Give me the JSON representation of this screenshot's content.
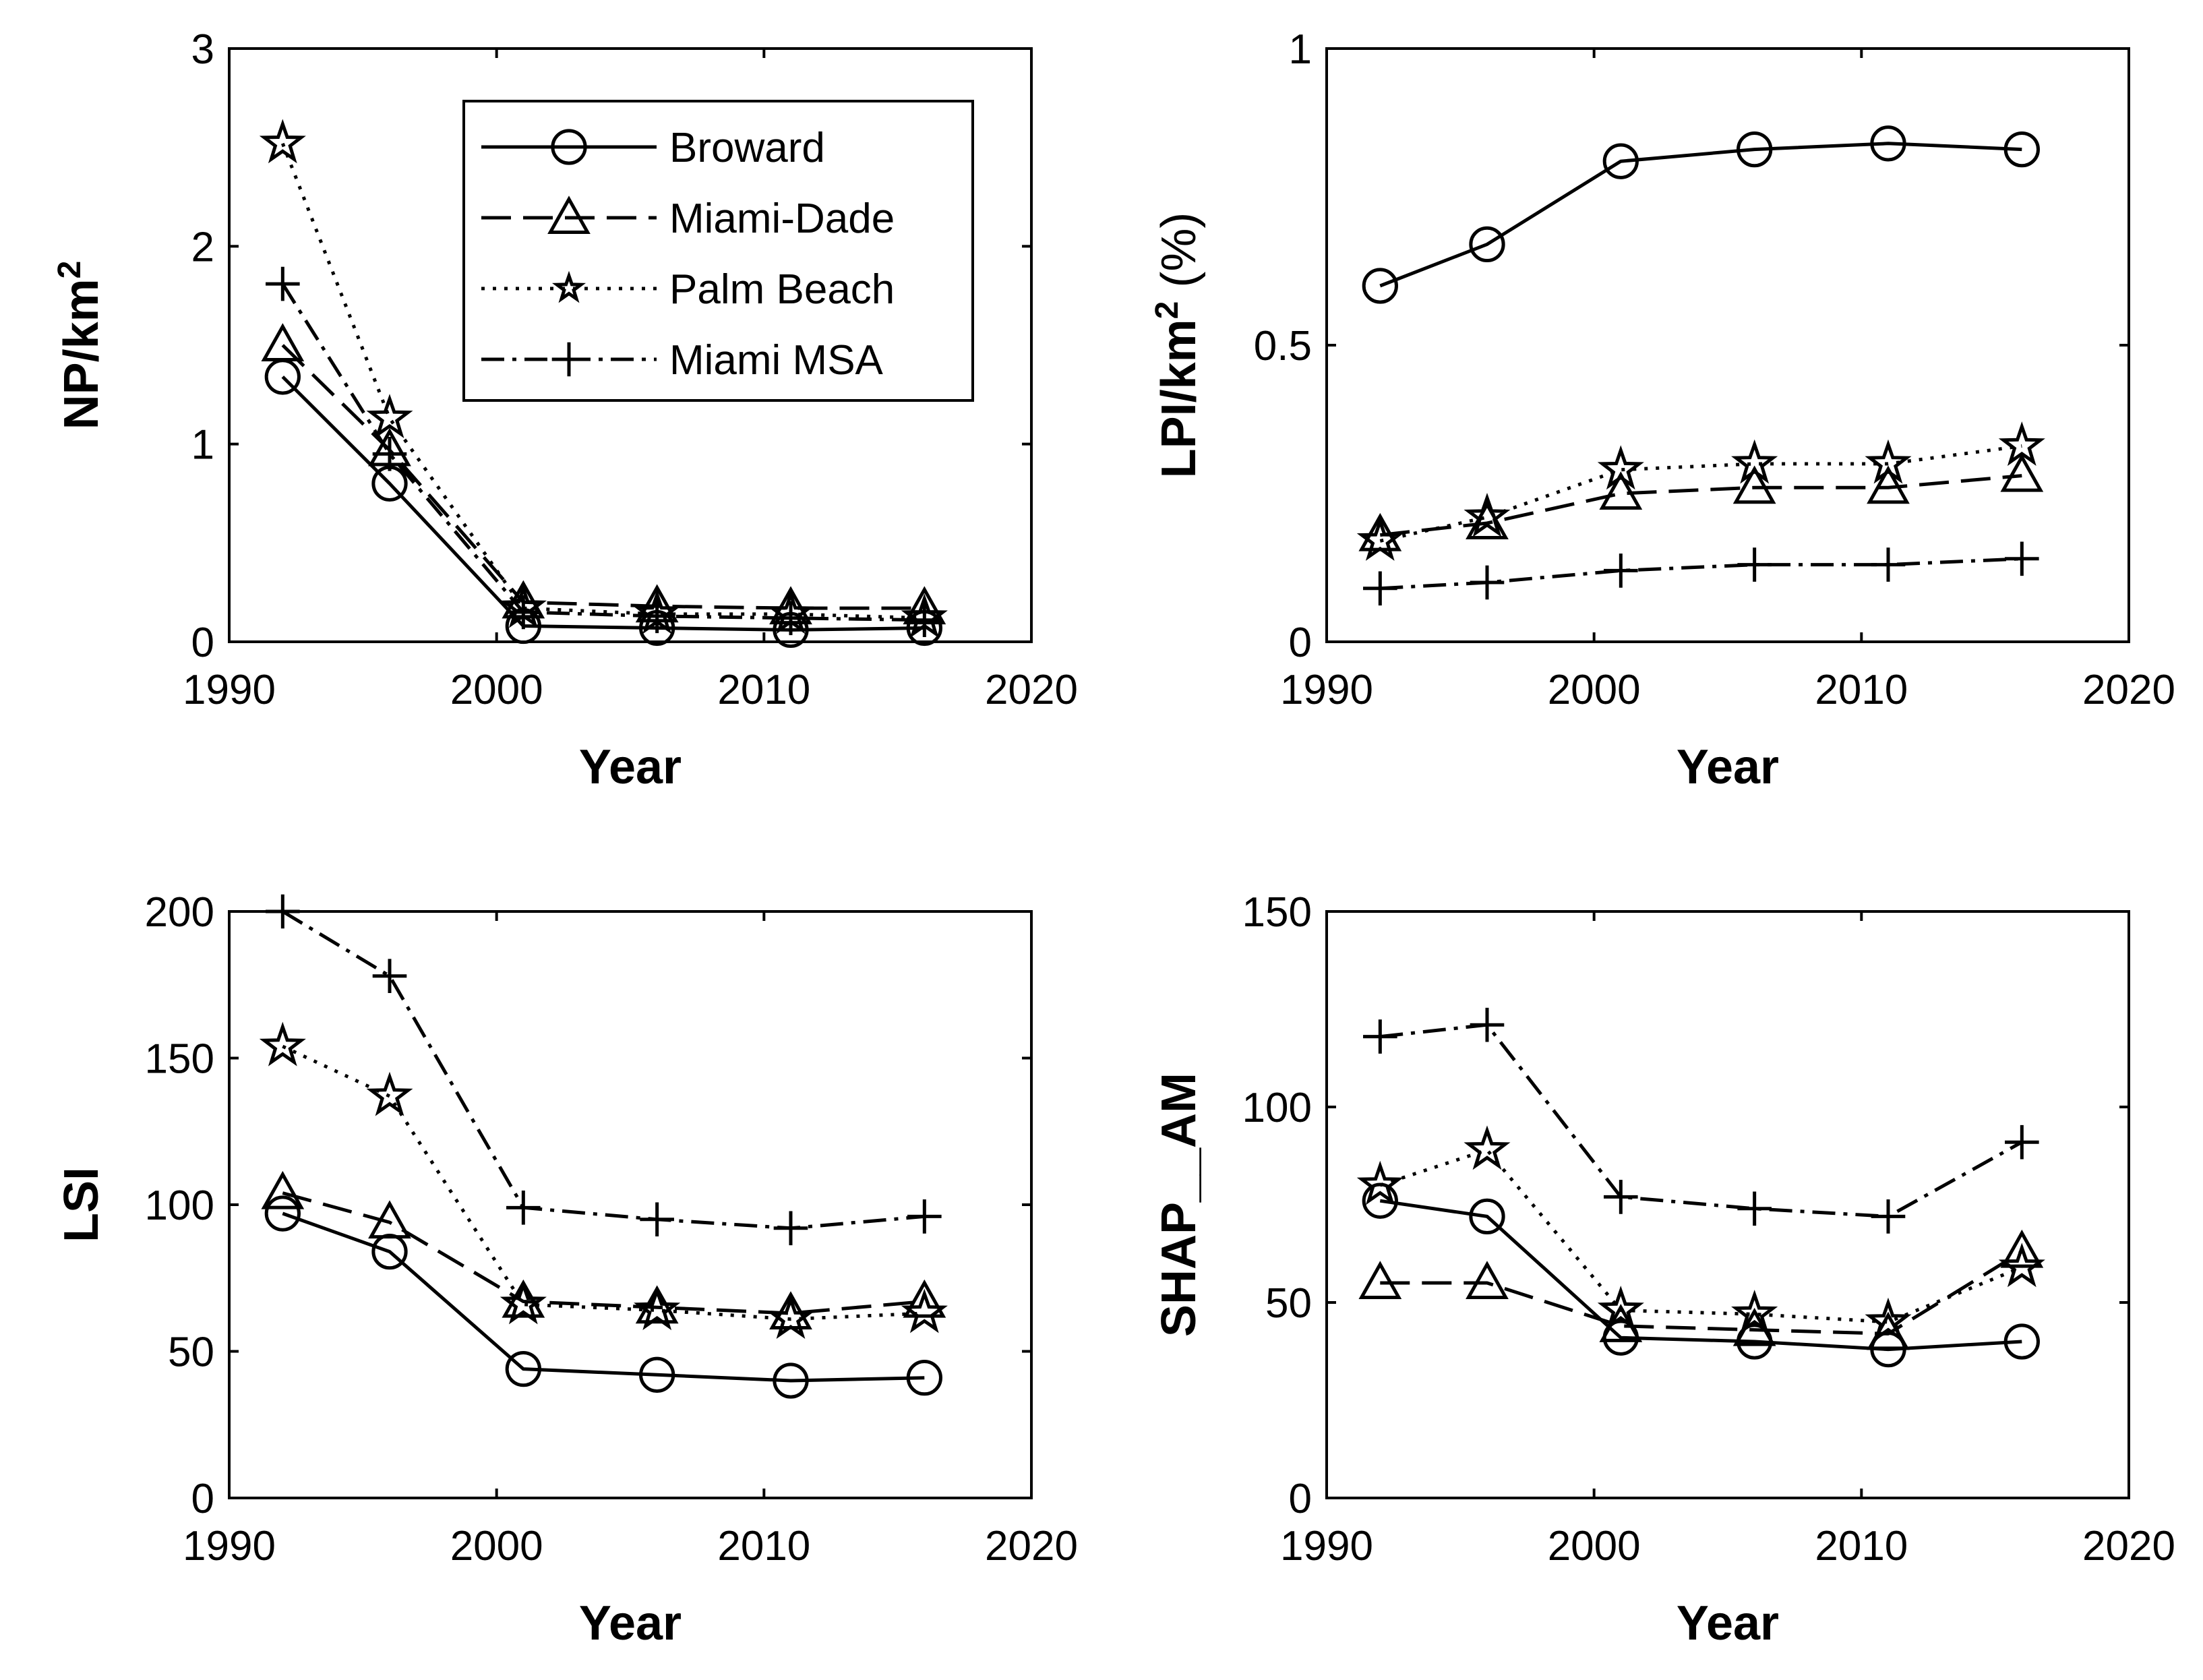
{
  "chart_data": [
    {
      "type": "line",
      "panel": "top-left",
      "xlabel": "Year",
      "ylabel": "NP/km",
      "ylabel_superscript": "2",
      "ylabel_suffix": "",
      "xlim": [
        1990,
        2020
      ],
      "ylim": [
        0,
        3
      ],
      "xticks": [
        1990,
        2000,
        2010,
        2020
      ],
      "yticks": [
        0,
        1,
        2,
        3
      ],
      "x": [
        1992,
        1996,
        2001,
        2006,
        2011,
        2016
      ],
      "legend": "top-right",
      "grid": false,
      "series": [
        {
          "name": "Broward",
          "marker": "circle",
          "dash": "solid",
          "values": [
            1.34,
            0.8,
            0.08,
            0.07,
            0.06,
            0.07
          ]
        },
        {
          "name": "Miami-Dade",
          "marker": "triangle",
          "dash": "dashed",
          "values": [
            1.5,
            0.97,
            0.2,
            0.18,
            0.17,
            0.17
          ]
        },
        {
          "name": "Palm Beach",
          "marker": "star",
          "dash": "dotted",
          "values": [
            2.52,
            1.13,
            0.17,
            0.14,
            0.14,
            0.12
          ]
        },
        {
          "name": "Miami MSA",
          "marker": "plus",
          "dash": "dashdot",
          "values": [
            1.81,
            0.95,
            0.15,
            0.13,
            0.12,
            0.11
          ]
        }
      ]
    },
    {
      "type": "line",
      "panel": "top-right",
      "xlabel": "Year",
      "ylabel": "LPI/km",
      "ylabel_superscript": "2",
      "ylabel_suffix": " (%)",
      "xlim": [
        1990,
        2020
      ],
      "ylim": [
        0,
        1
      ],
      "xticks": [
        1990,
        2000,
        2010,
        2020
      ],
      "yticks": [
        0,
        0.5,
        1
      ],
      "x": [
        1992,
        1996,
        2001,
        2006,
        2011,
        2016
      ],
      "grid": false,
      "series": [
        {
          "name": "Broward",
          "marker": "circle",
          "dash": "solid",
          "values": [
            0.6,
            0.67,
            0.81,
            0.83,
            0.84,
            0.83
          ]
        },
        {
          "name": "Miami-Dade",
          "marker": "triangle",
          "dash": "dashed",
          "values": [
            0.18,
            0.2,
            0.25,
            0.26,
            0.26,
            0.28
          ]
        },
        {
          "name": "Palm Beach",
          "marker": "star",
          "dash": "dotted",
          "values": [
            0.17,
            0.21,
            0.29,
            0.3,
            0.3,
            0.33
          ]
        },
        {
          "name": "Miami MSA",
          "marker": "plus",
          "dash": "dashdot",
          "values": [
            0.09,
            0.1,
            0.12,
            0.13,
            0.13,
            0.14
          ]
        }
      ]
    },
    {
      "type": "line",
      "panel": "bottom-left",
      "xlabel": "Year",
      "ylabel": "LSI",
      "ylabel_superscript": "",
      "ylabel_suffix": "",
      "xlim": [
        1990,
        2020
      ],
      "ylim": [
        0,
        200
      ],
      "xticks": [
        1990,
        2000,
        2010,
        2020
      ],
      "yticks": [
        0,
        50,
        100,
        150,
        200
      ],
      "x": [
        1992,
        1996,
        2001,
        2006,
        2011,
        2016
      ],
      "grid": false,
      "series": [
        {
          "name": "Broward",
          "marker": "circle",
          "dash": "solid",
          "values": [
            97,
            84,
            44,
            42,
            40,
            41
          ]
        },
        {
          "name": "Miami-Dade",
          "marker": "triangle",
          "dash": "dashed",
          "values": [
            104,
            94,
            67,
            65,
            63,
            67
          ]
        },
        {
          "name": "Palm Beach",
          "marker": "star",
          "dash": "dotted",
          "values": [
            154,
            137,
            66,
            64,
            61,
            63
          ]
        },
        {
          "name": "Miami MSA",
          "marker": "plus",
          "dash": "dashdot",
          "values": [
            200,
            178,
            99,
            95,
            92,
            96
          ]
        }
      ]
    },
    {
      "type": "line",
      "panel": "bottom-right",
      "xlabel": "Year",
      "ylabel": "SHAP__AM",
      "ylabel_superscript": "",
      "ylabel_suffix": "",
      "xlim": [
        1990,
        2020
      ],
      "ylim": [
        0,
        150
      ],
      "xticks": [
        1990,
        2000,
        2010,
        2020
      ],
      "yticks": [
        0,
        50,
        100,
        150
      ],
      "x": [
        1992,
        1996,
        2001,
        2006,
        2011,
        2016
      ],
      "grid": false,
      "series": [
        {
          "name": "Broward",
          "marker": "circle",
          "dash": "solid",
          "values": [
            76,
            72,
            41,
            40,
            38,
            40
          ]
        },
        {
          "name": "Miami-Dade",
          "marker": "triangle",
          "dash": "dashed",
          "values": [
            55,
            55,
            44,
            43,
            42,
            63
          ]
        },
        {
          "name": "Palm Beach",
          "marker": "star",
          "dash": "dotted",
          "values": [
            80,
            89,
            48,
            47,
            45,
            59
          ]
        },
        {
          "name": "Miami MSA",
          "marker": "plus",
          "dash": "dashdot",
          "values": [
            118,
            121,
            77,
            74,
            72,
            91
          ]
        }
      ]
    }
  ]
}
